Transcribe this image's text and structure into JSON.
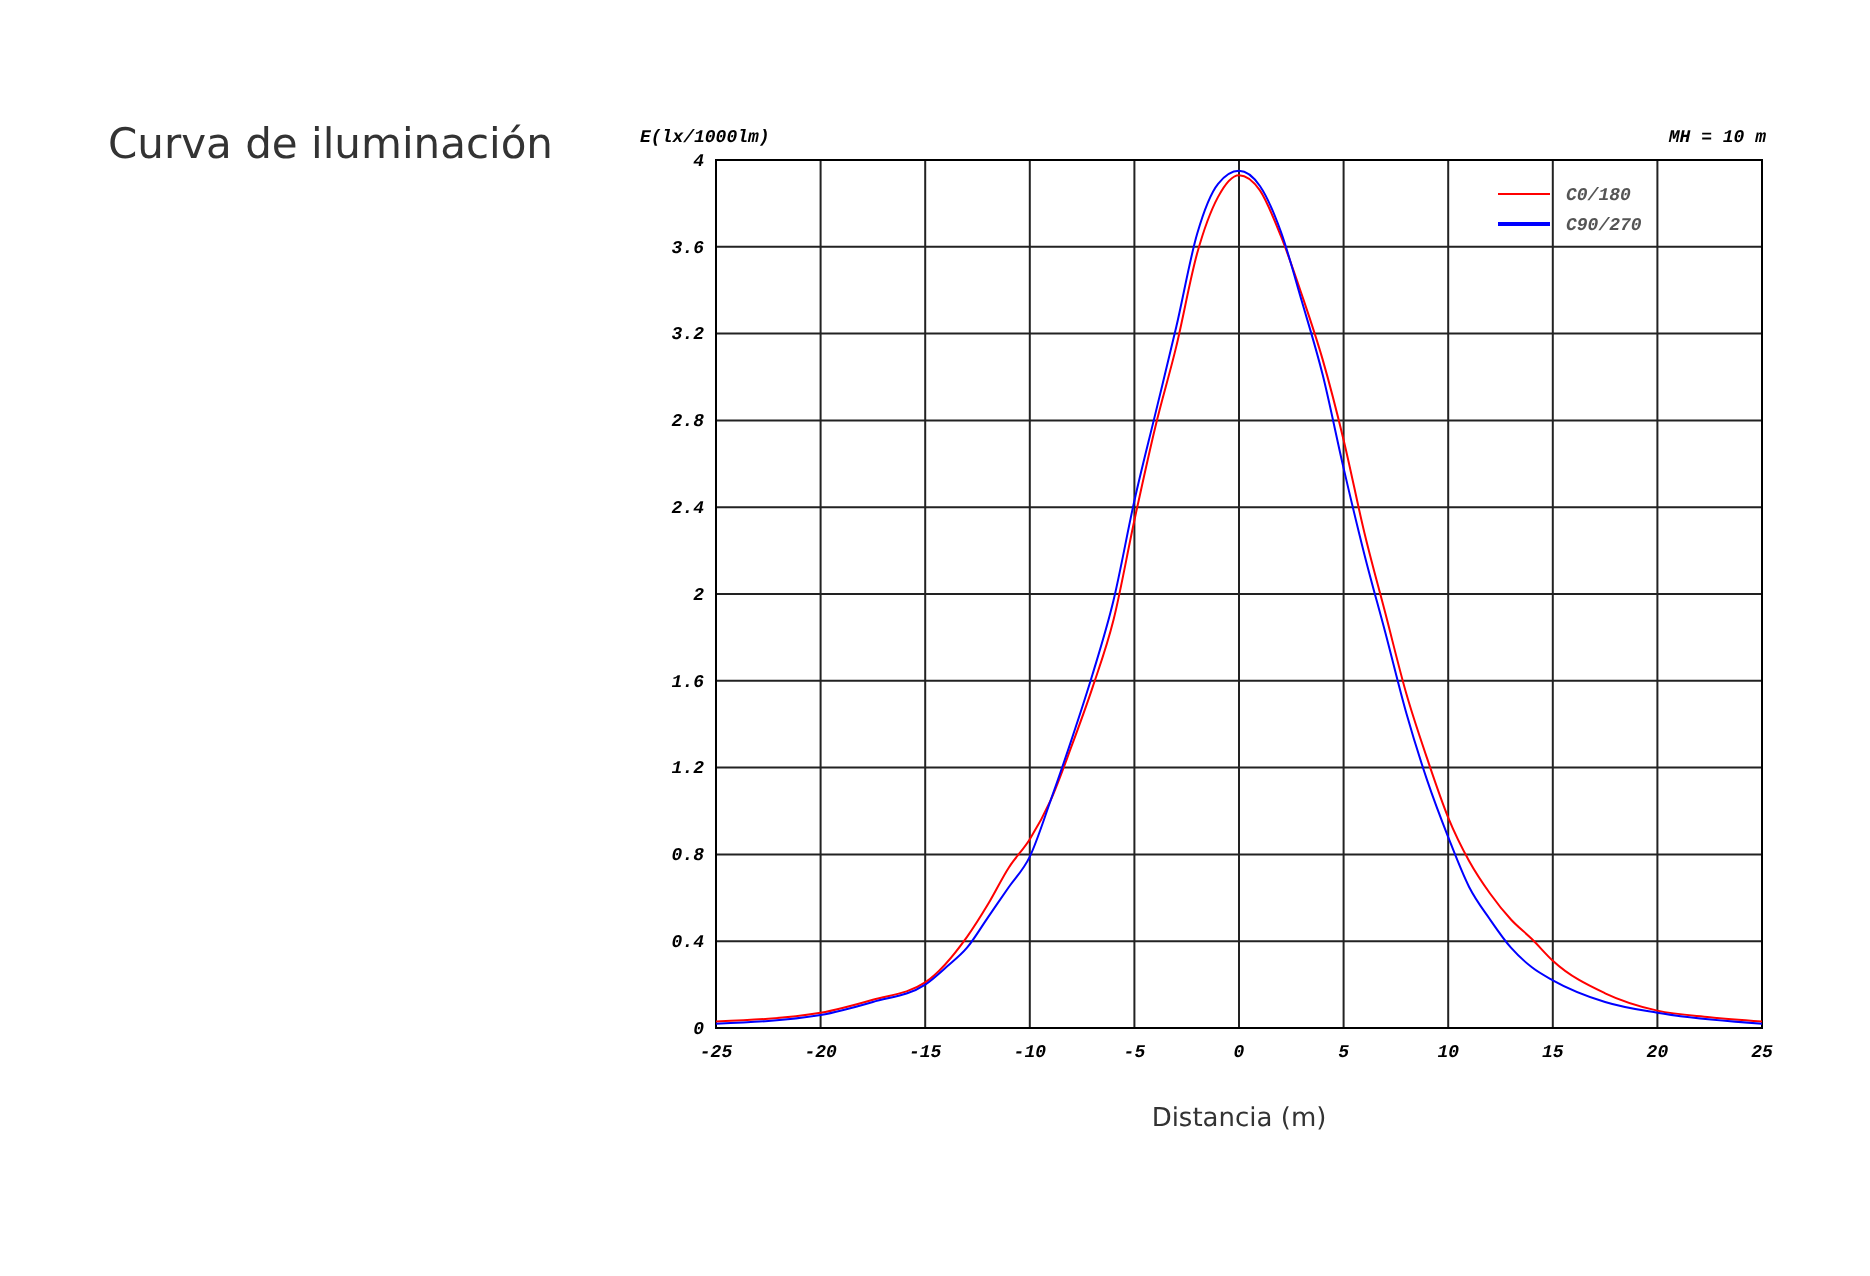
{
  "chart_data": {
    "type": "line",
    "title": "Curva de iluminación",
    "xlabel": "Distancia (m)",
    "ylabel": "E(lx/1000lm)",
    "annotations": [
      "MH = 10 m"
    ],
    "xlim": [
      -25,
      25
    ],
    "xticks": [
      -25,
      -20,
      -15,
      -10,
      -5,
      0,
      5,
      10,
      15,
      20,
      25
    ],
    "ylim": [
      0,
      4
    ],
    "yticks": [
      0,
      0.4,
      0.8,
      1.2,
      1.6,
      2,
      2.4,
      2.8,
      3.2,
      3.6,
      4
    ],
    "grid": true,
    "legend": "top right",
    "marker": "none",
    "line_style": "solid",
    "series": [
      {
        "name": "C0/180",
        "color": "#ff0000",
        "x": [
          -25,
          -20,
          -17.5,
          -15,
          -13,
          -12,
          -11,
          -10,
          -9,
          -8,
          -7,
          -6,
          -5,
          -4,
          -3,
          -2,
          -1,
          0,
          1,
          2,
          3,
          4,
          5,
          6,
          7,
          8,
          9,
          10,
          11,
          12,
          13,
          14,
          15,
          17.5,
          20,
          22.5,
          25
        ],
        "values": [
          0.03,
          0.07,
          0.13,
          0.21,
          0.42,
          0.57,
          0.74,
          0.87,
          1.05,
          1.3,
          1.57,
          1.88,
          2.34,
          2.77,
          3.14,
          3.57,
          3.83,
          3.93,
          3.86,
          3.65,
          3.38,
          3.08,
          2.71,
          2.28,
          1.91,
          1.54,
          1.24,
          0.97,
          0.77,
          0.62,
          0.5,
          0.41,
          0.31,
          0.16,
          0.08,
          0.05,
          0.03
        ]
      },
      {
        "name": "C90/270",
        "color": "#0000ff",
        "x": [
          -25,
          -20,
          -17.5,
          -15,
          -14,
          -13,
          -12,
          -11,
          -10,
          -9,
          -8,
          -7,
          -6,
          -5,
          -4,
          -3,
          -2,
          -1,
          0,
          1,
          2,
          3,
          4,
          5,
          6,
          7,
          8,
          9,
          10,
          11,
          12,
          13,
          14,
          15,
          17.5,
          20,
          25
        ],
        "values": [
          0.02,
          0.06,
          0.12,
          0.2,
          0.28,
          0.37,
          0.51,
          0.65,
          0.79,
          1.05,
          1.33,
          1.63,
          1.97,
          2.43,
          2.83,
          3.23,
          3.66,
          3.89,
          3.95,
          3.88,
          3.67,
          3.35,
          3.01,
          2.58,
          2.18,
          1.82,
          1.45,
          1.14,
          0.88,
          0.65,
          0.5,
          0.37,
          0.28,
          0.22,
          0.12,
          0.07,
          0.02
        ]
      }
    ]
  }
}
